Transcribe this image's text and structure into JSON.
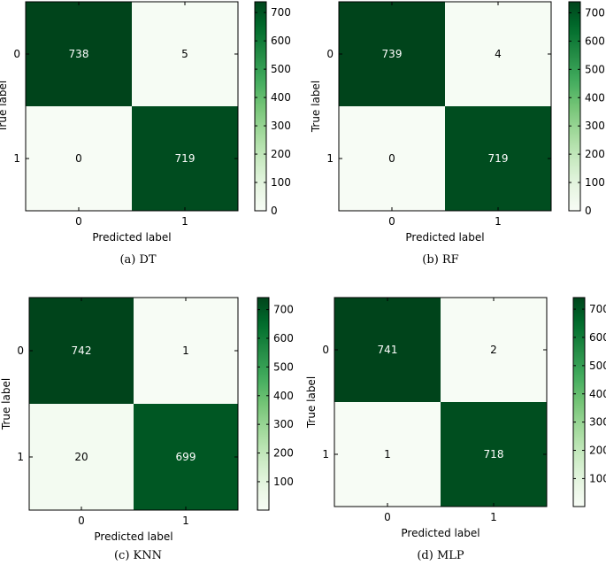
{
  "chart_data": [
    {
      "type": "heatmap",
      "caption": "(a) DT",
      "xlabel": "Predicted label",
      "ylabel": "True label",
      "x_ticks": [
        "0",
        "1"
      ],
      "y_ticks": [
        "0",
        "1"
      ],
      "matrix": [
        [
          738,
          5
        ],
        [
          0,
          719
        ]
      ],
      "colormap": "Greens",
      "colorbar": {
        "min": 0,
        "max": 738,
        "ticks": [
          0,
          100,
          200,
          300,
          400,
          500,
          600,
          700
        ]
      }
    },
    {
      "type": "heatmap",
      "caption": "(b) RF",
      "xlabel": "Predicted label",
      "ylabel": "True label",
      "x_ticks": [
        "0",
        "1"
      ],
      "y_ticks": [
        "0",
        "1"
      ],
      "matrix": [
        [
          739,
          4
        ],
        [
          0,
          719
        ]
      ],
      "colormap": "Greens",
      "colorbar": {
        "min": 0,
        "max": 739,
        "ticks": [
          0,
          100,
          200,
          300,
          400,
          500,
          600,
          700
        ]
      }
    },
    {
      "type": "heatmap",
      "caption": "(c) KNN",
      "xlabel": "Predicted label",
      "ylabel": "True label",
      "x_ticks": [
        "0",
        "1"
      ],
      "y_ticks": [
        "0",
        "1"
      ],
      "matrix": [
        [
          742,
          1
        ],
        [
          20,
          699
        ]
      ],
      "colormap": "Greens",
      "colorbar": {
        "min": 1,
        "max": 742,
        "ticks": [
          100,
          200,
          300,
          400,
          500,
          600,
          700
        ]
      }
    },
    {
      "type": "heatmap",
      "caption": "(d) MLP",
      "xlabel": "Predicted label",
      "ylabel": "True label",
      "x_ticks": [
        "0",
        "1"
      ],
      "y_ticks": [
        "0",
        "1"
      ],
      "matrix": [
        [
          741,
          2
        ],
        [
          1,
          718
        ]
      ],
      "colormap": "Greens",
      "colorbar": {
        "min": 1,
        "max": 741,
        "ticks": [
          100,
          200,
          300,
          400,
          500,
          600,
          700
        ]
      }
    }
  ]
}
